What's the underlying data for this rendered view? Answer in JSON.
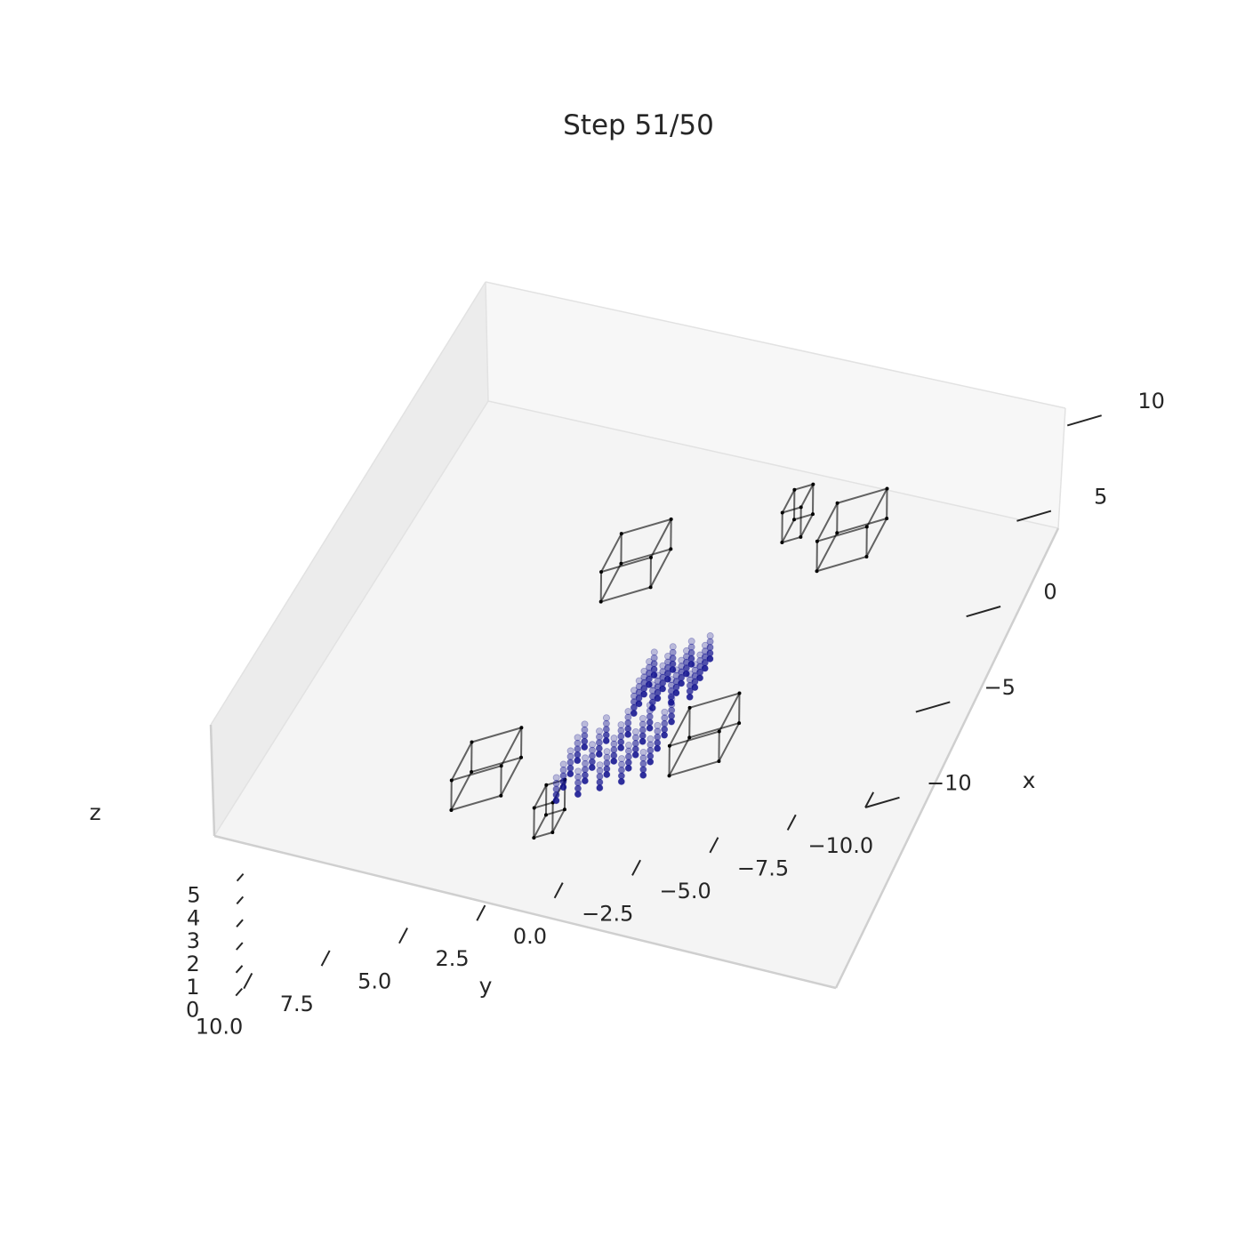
{
  "chart_data": {
    "type": "scatter",
    "title": "Step 51/50",
    "xlabel": "x",
    "ylabel": "y",
    "zlabel": "z",
    "xlim": [
      -10,
      12
    ],
    "ylim": [
      -10,
      10
    ],
    "zlim": [
      0,
      5
    ],
    "grid": false,
    "x_ticks": [
      "10",
      "5",
      "0",
      "−5",
      "−10"
    ],
    "y_ticks": [
      "10.0",
      "7.5",
      "5.0",
      "2.5",
      "0.0",
      "−2.5",
      "−5.0",
      "−7.5",
      "−10.0"
    ],
    "z_ticks": [
      "5",
      "4",
      "3",
      "2",
      "1",
      "0"
    ],
    "point_color": "#0a0a8c",
    "series": [
      {
        "points": [
          [
            2.0,
            -1.1
          ],
          [
            2.0,
            -0.5
          ],
          [
            2.0,
            0.1
          ],
          [
            2.0,
            0.7
          ],
          [
            1.5,
            -1.1
          ],
          [
            1.5,
            -0.5
          ],
          [
            1.5,
            0.1
          ],
          [
            1.5,
            0.7
          ],
          [
            1.0,
            -1.1
          ],
          [
            1.0,
            -0.5
          ],
          [
            1.0,
            0.1
          ],
          [
            1.0,
            0.7
          ],
          [
            0.5,
            -1.1
          ],
          [
            0.5,
            -0.5
          ],
          [
            0.5,
            0.1
          ],
          [
            0.5,
            0.7
          ],
          [
            0.0,
            -1.1
          ],
          [
            0.0,
            -0.5
          ],
          [
            0.0,
            0.1
          ],
          [
            0.0,
            0.7
          ]
        ]
      },
      {
        "points": [
          [
            -1.2,
            1.9
          ],
          [
            -1.2,
            1.2
          ],
          [
            -1.2,
            0.5
          ],
          [
            -1.2,
            -0.2
          ],
          [
            -1.2,
            -0.9
          ],
          [
            -1.9,
            1.9
          ],
          [
            -1.9,
            1.2
          ],
          [
            -1.9,
            0.5
          ],
          [
            -1.9,
            -0.2
          ],
          [
            -1.9,
            -0.9
          ],
          [
            -2.6,
            1.9
          ],
          [
            -2.6,
            1.2
          ],
          [
            -2.6,
            0.5
          ],
          [
            -2.6,
            -0.2
          ],
          [
            -2.6,
            -0.9
          ],
          [
            -3.3,
            1.9
          ],
          [
            -3.3,
            1.2
          ],
          [
            -3.3,
            0.5
          ],
          [
            -3.3,
            -0.2
          ],
          [
            -3.3,
            -0.9
          ],
          [
            -4.0,
            1.9
          ],
          [
            -4.0,
            1.2
          ],
          [
            -4.0,
            0.5
          ],
          [
            -4.0,
            -0.2
          ],
          [
            -4.0,
            -0.9
          ]
        ]
      }
    ],
    "obstacles": [
      {
        "x": [
          7.5,
          9.5
        ],
        "y": [
          2.6,
          4.2
        ],
        "z": [
          0,
          1.3
        ]
      },
      {
        "x": [
          7.9,
          9.1
        ],
        "y": [
          -2.1,
          -1.5
        ],
        "z": [
          0,
          1.3
        ]
      },
      {
        "x": [
          5.5,
          7.5
        ],
        "y": [
          -5.0,
          -3.4
        ],
        "z": [
          0,
          1.3
        ]
      },
      {
        "x": [
          -2.7,
          -0.7
        ],
        "y": [
          4.1,
          5.7
        ],
        "z": [
          0,
          1.3
        ]
      },
      {
        "x": [
          -5.9,
          -4.7
        ],
        "y": [
          1.4,
          2.0
        ],
        "z": [
          0,
          1.3
        ]
      },
      {
        "x": [
          -4.5,
          -2.5
        ],
        "y": [
          -3.5,
          -1.9
        ],
        "z": [
          0,
          1.3
        ]
      }
    ]
  }
}
